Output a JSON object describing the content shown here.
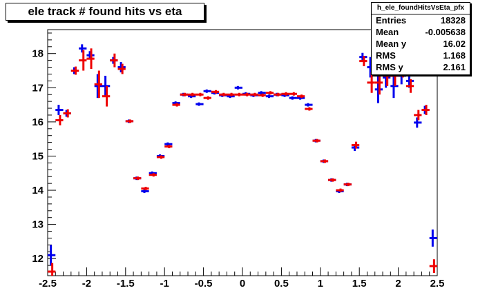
{
  "chart_data": {
    "type": "scatter",
    "title": "ele track # found hits vs eta",
    "xlabel": "",
    "ylabel": "",
    "xlim": [
      -2.5,
      2.5
    ],
    "ylim": [
      11.5,
      18.7
    ],
    "x_ticks": [
      -2.5,
      -2,
      -1.5,
      -1,
      -0.5,
      0,
      0.5,
      1,
      1.5,
      2,
      2.5
    ],
    "x_tick_labels": [
      "-2.5",
      "-2",
      "-1.5",
      "-1",
      "-0.5",
      "0",
      "0.5",
      "1",
      "1.5",
      "2",
      "2.5"
    ],
    "y_ticks": [
      12,
      13,
      14,
      15,
      16,
      17,
      18
    ],
    "y_tick_labels": [
      "12",
      "13",
      "14",
      "15",
      "16",
      "17",
      "18"
    ],
    "stats": {
      "name": "h_ele_foundHitsVsEta_pfx",
      "rows": [
        {
          "label": "Entries",
          "value": "18328"
        },
        {
          "label": "Mean",
          "value": "-0.005638"
        },
        {
          "label": "Mean y",
          "value": "16.02"
        },
        {
          "label": "RMS",
          "value": "1.168"
        },
        {
          "label": "RMS y",
          "value": "2.161"
        }
      ]
    },
    "series": [
      {
        "color": "#0000ee",
        "half_bin": 0.05,
        "points": [
          {
            "x": -2.45,
            "y": 12.1,
            "err": 0.3
          },
          {
            "x": -2.35,
            "y": 16.35,
            "err": 0.15
          },
          {
            "x": -2.25,
            "y": 16.25,
            "err": 0.1
          },
          {
            "x": -2.15,
            "y": 17.5,
            "err": 0.1
          },
          {
            "x": -2.05,
            "y": 18.15,
            "err": 0.12
          },
          {
            "x": -1.95,
            "y": 17.95,
            "err": 0.12
          },
          {
            "x": -1.85,
            "y": 17.05,
            "err": 0.35
          },
          {
            "x": -1.75,
            "y": 17.05,
            "err": 0.3
          },
          {
            "x": -1.65,
            "y": 17.8,
            "err": 0.1
          },
          {
            "x": -1.55,
            "y": 17.6,
            "err": 0.15
          },
          {
            "x": -1.45,
            "y": 16.02,
            "err": 0.05
          },
          {
            "x": -1.35,
            "y": 14.35,
            "err": 0.05
          },
          {
            "x": -1.25,
            "y": 13.97,
            "err": 0.05
          },
          {
            "x": -1.15,
            "y": 14.5,
            "err": 0.05
          },
          {
            "x": -1.05,
            "y": 15.0,
            "err": 0.05
          },
          {
            "x": -0.95,
            "y": 15.35,
            "err": 0.05
          },
          {
            "x": -0.85,
            "y": 16.55,
            "err": 0.05
          },
          {
            "x": -0.75,
            "y": 16.8,
            "err": 0.05
          },
          {
            "x": -0.65,
            "y": 16.75,
            "err": 0.05
          },
          {
            "x": -0.55,
            "y": 16.52,
            "err": 0.05
          },
          {
            "x": -0.45,
            "y": 16.9,
            "err": 0.05
          },
          {
            "x": -0.35,
            "y": 16.85,
            "err": 0.05
          },
          {
            "x": -0.25,
            "y": 16.78,
            "err": 0.05
          },
          {
            "x": -0.15,
            "y": 16.75,
            "err": 0.05
          },
          {
            "x": -0.05,
            "y": 17.0,
            "err": 0.05
          },
          {
            "x": 0.05,
            "y": 16.82,
            "err": 0.05
          },
          {
            "x": 0.15,
            "y": 16.78,
            "err": 0.05
          },
          {
            "x": 0.25,
            "y": 16.85,
            "err": 0.05
          },
          {
            "x": 0.35,
            "y": 16.75,
            "err": 0.05
          },
          {
            "x": 0.45,
            "y": 16.8,
            "err": 0.05
          },
          {
            "x": 0.55,
            "y": 16.78,
            "err": 0.05
          },
          {
            "x": 0.65,
            "y": 16.7,
            "err": 0.05
          },
          {
            "x": 0.75,
            "y": 16.7,
            "err": 0.05
          },
          {
            "x": 0.85,
            "y": 16.5,
            "err": 0.05
          },
          {
            "x": 0.95,
            "y": 15.45,
            "err": 0.05
          },
          {
            "x": 1.05,
            "y": 14.85,
            "err": 0.05
          },
          {
            "x": 1.15,
            "y": 14.3,
            "err": 0.05
          },
          {
            "x": 1.25,
            "y": 13.97,
            "err": 0.05
          },
          {
            "x": 1.35,
            "y": 14.17,
            "err": 0.05
          },
          {
            "x": 1.45,
            "y": 15.25,
            "err": 0.1
          },
          {
            "x": 1.55,
            "y": 17.9,
            "err": 0.12
          },
          {
            "x": 1.65,
            "y": 17.6,
            "err": 0.3
          },
          {
            "x": 1.75,
            "y": 16.95,
            "err": 0.4
          },
          {
            "x": 1.85,
            "y": 17.3,
            "err": 0.3
          },
          {
            "x": 1.95,
            "y": 17.05,
            "err": 0.35
          },
          {
            "x": 2.05,
            "y": 17.35,
            "err": 0.25
          },
          {
            "x": 2.15,
            "y": 17.2,
            "err": 0.2
          },
          {
            "x": 2.25,
            "y": 15.98,
            "err": 0.15
          },
          {
            "x": 2.35,
            "y": 16.35,
            "err": 0.12
          },
          {
            "x": 2.45,
            "y": 12.6,
            "err": 0.25
          }
        ]
      },
      {
        "color": "#ee0000",
        "half_bin": 0.05,
        "points": [
          {
            "x": -2.45,
            "y": 11.62,
            "err": 0.25
          },
          {
            "x": -2.35,
            "y": 16.05,
            "err": 0.15
          },
          {
            "x": -2.25,
            "y": 16.25,
            "err": 0.12
          },
          {
            "x": -2.15,
            "y": 17.5,
            "err": 0.12
          },
          {
            "x": -2.05,
            "y": 17.8,
            "err": 0.3
          },
          {
            "x": -1.95,
            "y": 17.85,
            "err": 0.3
          },
          {
            "x": -1.85,
            "y": 17.1,
            "err": 0.4
          },
          {
            "x": -1.75,
            "y": 16.75,
            "err": 0.3
          },
          {
            "x": -1.65,
            "y": 17.8,
            "err": 0.2
          },
          {
            "x": -1.55,
            "y": 17.55,
            "err": 0.15
          },
          {
            "x": -1.45,
            "y": 16.02,
            "err": 0.05
          },
          {
            "x": -1.35,
            "y": 14.35,
            "err": 0.05
          },
          {
            "x": -1.25,
            "y": 14.05,
            "err": 0.05
          },
          {
            "x": -1.15,
            "y": 14.45,
            "err": 0.05
          },
          {
            "x": -1.05,
            "y": 14.97,
            "err": 0.05
          },
          {
            "x": -0.95,
            "y": 15.28,
            "err": 0.05
          },
          {
            "x": -0.85,
            "y": 16.5,
            "err": 0.05
          },
          {
            "x": -0.75,
            "y": 16.8,
            "err": 0.05
          },
          {
            "x": -0.65,
            "y": 16.8,
            "err": 0.05
          },
          {
            "x": -0.55,
            "y": 16.8,
            "err": 0.05
          },
          {
            "x": -0.45,
            "y": 16.7,
            "err": 0.05
          },
          {
            "x": -0.35,
            "y": 16.88,
            "err": 0.05
          },
          {
            "x": -0.25,
            "y": 16.8,
            "err": 0.05
          },
          {
            "x": -0.15,
            "y": 16.8,
            "err": 0.05
          },
          {
            "x": -0.05,
            "y": 16.8,
            "err": 0.05
          },
          {
            "x": 0.05,
            "y": 16.8,
            "err": 0.05
          },
          {
            "x": 0.15,
            "y": 16.8,
            "err": 0.05
          },
          {
            "x": 0.25,
            "y": 16.78,
            "err": 0.05
          },
          {
            "x": 0.35,
            "y": 16.85,
            "err": 0.05
          },
          {
            "x": 0.45,
            "y": 16.8,
            "err": 0.05
          },
          {
            "x": 0.55,
            "y": 16.82,
            "err": 0.05
          },
          {
            "x": 0.65,
            "y": 16.82,
            "err": 0.05
          },
          {
            "x": 0.75,
            "y": 16.75,
            "err": 0.05
          },
          {
            "x": 0.85,
            "y": 16.38,
            "err": 0.05
          },
          {
            "x": 0.95,
            "y": 15.45,
            "err": 0.05
          },
          {
            "x": 1.05,
            "y": 14.85,
            "err": 0.05
          },
          {
            "x": 1.15,
            "y": 14.3,
            "err": 0.05
          },
          {
            "x": 1.25,
            "y": 14.0,
            "err": 0.05
          },
          {
            "x": 1.35,
            "y": 14.17,
            "err": 0.05
          },
          {
            "x": 1.45,
            "y": 15.32,
            "err": 0.1
          },
          {
            "x": 1.55,
            "y": 17.78,
            "err": 0.15
          },
          {
            "x": 1.65,
            "y": 17.15,
            "err": 0.3
          },
          {
            "x": 1.75,
            "y": 17.15,
            "err": 0.35
          },
          {
            "x": 1.85,
            "y": 17.35,
            "err": 0.3
          },
          {
            "x": 1.95,
            "y": 17.35,
            "err": 0.3
          },
          {
            "x": 2.05,
            "y": 17.55,
            "err": 0.25
          },
          {
            "x": 2.15,
            "y": 17.05,
            "err": 0.2
          },
          {
            "x": 2.25,
            "y": 16.2,
            "err": 0.15
          },
          {
            "x": 2.35,
            "y": 16.35,
            "err": 0.15
          },
          {
            "x": 2.45,
            "y": 11.78,
            "err": 0.2
          }
        ]
      }
    ]
  }
}
